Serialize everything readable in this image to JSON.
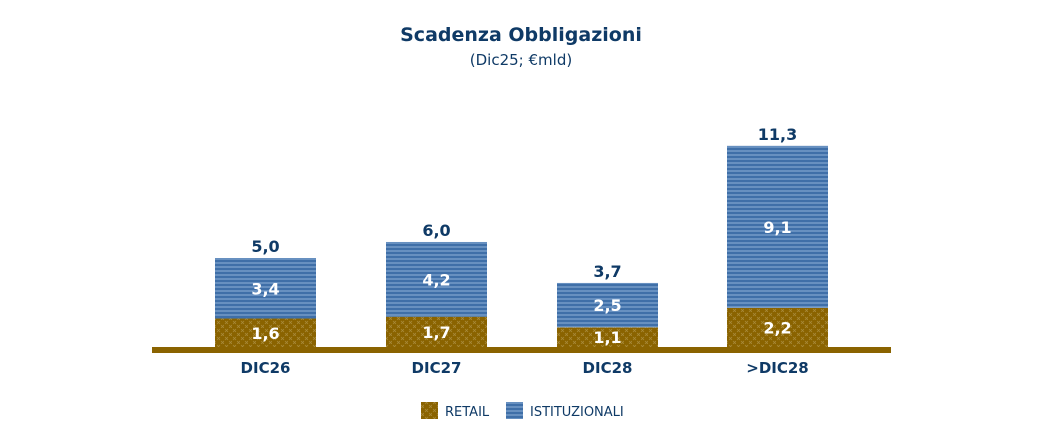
{
  "chart_data": {
    "type": "bar",
    "stacked": true,
    "title": "Scadenza Obbligazioni",
    "subtitle": "(Dic25; €mld)",
    "categories": [
      "DIC26",
      "DIC27",
      "DIC28",
      ">DIC28"
    ],
    "series": [
      {
        "name": "RETAIL",
        "values": [
          1.6,
          1.7,
          1.1,
          2.2
        ],
        "labels": [
          "1,6",
          "1,7",
          "1,1",
          "2,2"
        ],
        "color": "#8a6300"
      },
      {
        "name": "ISTITUZIONALI",
        "values": [
          3.4,
          4.2,
          2.5,
          9.1
        ],
        "labels": [
          "3,4",
          "4,2",
          "2,5",
          "9,1"
        ],
        "color": "#3f6fa8"
      }
    ],
    "totals": [
      5.0,
      6.0,
      3.7,
      11.3
    ],
    "total_labels": [
      "5,0",
      "6,0",
      "3,7",
      "11,3"
    ],
    "legend_position": "bottom",
    "grid": false,
    "colors": {
      "title": "#0f3a66",
      "axis": "#8a6300"
    }
  }
}
